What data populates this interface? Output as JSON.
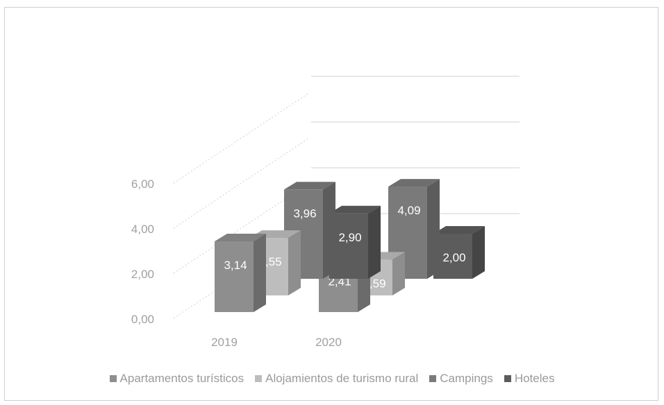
{
  "chart_data": {
    "type": "bar",
    "categories": [
      "2019",
      "2020"
    ],
    "series": [
      {
        "name": "Apartamentos turísticos",
        "values": [
          3.14,
          2.41
        ],
        "labels": [
          "3,14",
          "2,41"
        ],
        "color": "#8e8e8e"
      },
      {
        "name": "Alojamientos de turismo rural",
        "values": [
          2.55,
          1.59
        ],
        "labels": [
          "2,55",
          "1,59"
        ],
        "color": "#bdbdbd"
      },
      {
        "name": "Campings",
        "values": [
          3.96,
          4.09
        ],
        "labels": [
          "3,96",
          "4,09"
        ],
        "color": "#7a7a7a"
      },
      {
        "name": "Hoteles",
        "values": [
          2.9,
          2.0
        ],
        "labels": [
          "2,90",
          "2,00"
        ],
        "color": "#5c5c5c"
      }
    ],
    "ylim": [
      0,
      6
    ],
    "yticks": [
      "0,00",
      "2,00",
      "4,00",
      "6,00"
    ],
    "grid": true,
    "legend_position": "bottom"
  }
}
